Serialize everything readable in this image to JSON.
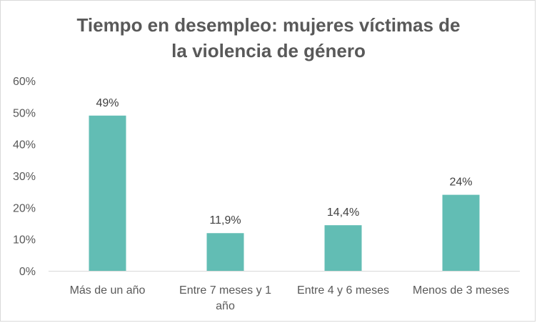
{
  "chart_data": {
    "type": "bar",
    "title_lines": [
      "Tiempo en desempleo: mujeres víctimas de",
      "la violencia de género"
    ],
    "categories": [
      [
        "Más de un año"
      ],
      [
        "Entre 7 meses y 1",
        "año"
      ],
      [
        "Entre 4 y 6 meses"
      ],
      [
        "Menos de 3 meses"
      ]
    ],
    "values": [
      49,
      11.9,
      14.4,
      24
    ],
    "data_labels": [
      "49%",
      "11,9%",
      "14,4%",
      "24%"
    ],
    "yticks": [
      "0%",
      "10%",
      "20%",
      "30%",
      "40%",
      "50%",
      "60%"
    ],
    "ylim": [
      0,
      60
    ],
    "bar_color": "#62bdb4",
    "axis_color": "#d9d9d9",
    "grid": false
  }
}
